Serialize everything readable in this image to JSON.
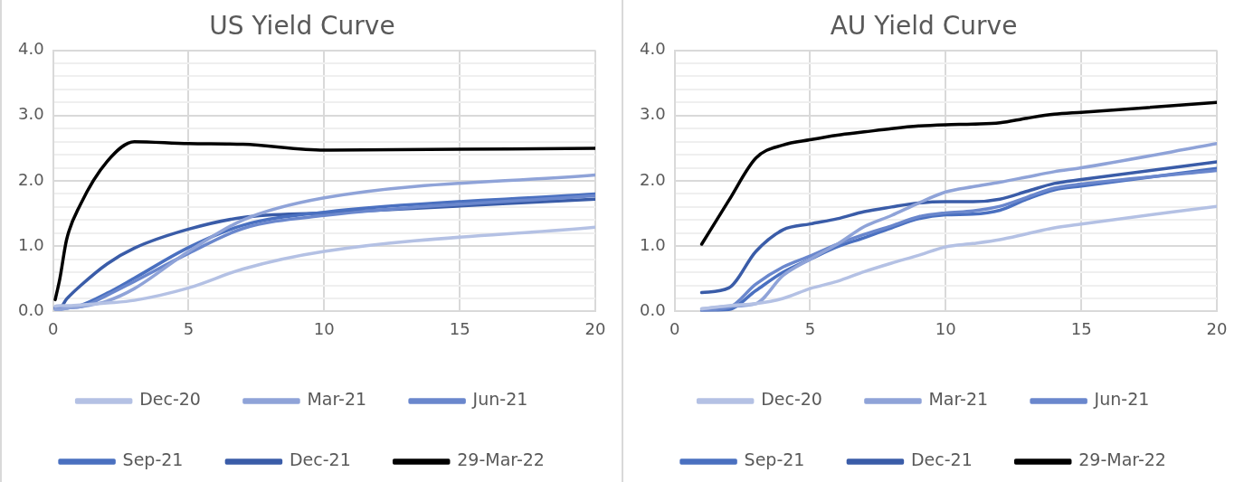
{
  "chart_data": [
    {
      "type": "line",
      "title": "US Yield Curve",
      "x": [
        0.08,
        0.25,
        0.5,
        1,
        2,
        3,
        5,
        7,
        10,
        20
      ],
      "series": [
        {
          "name": "Dec-20",
          "color": "#b4c1e4",
          "values": [
            0.08,
            0.09,
            0.09,
            0.1,
            0.13,
            0.17,
            0.36,
            0.65,
            0.92,
            1.29
          ]
        },
        {
          "name": "Mar-21",
          "color": "#8fa3d8",
          "values": [
            0.03,
            0.03,
            0.05,
            0.07,
            0.16,
            0.35,
            0.92,
            1.4,
            1.74,
            2.09
          ]
        },
        {
          "name": "Jun-21",
          "color": "#6a87cd",
          "values": [
            0.05,
            0.05,
            0.06,
            0.07,
            0.25,
            0.46,
            0.89,
            1.27,
            1.47,
            1.77
          ]
        },
        {
          "name": "Sep-21",
          "color": "#4a70c0",
          "values": [
            0.04,
            0.04,
            0.05,
            0.09,
            0.28,
            0.51,
            0.98,
            1.32,
            1.52,
            1.8
          ]
        },
        {
          "name": "Dec-21",
          "color": "#3a5ca8",
          "values": [
            0.06,
            0.06,
            0.19,
            0.39,
            0.73,
            0.97,
            1.26,
            1.44,
            1.51,
            1.72
          ]
        },
        {
          "name": "29-Mar-22",
          "color": "#000000",
          "values": [
            0.18,
            0.5,
            1.1,
            1.63,
            2.3,
            2.6,
            2.57,
            2.56,
            2.47,
            2.5
          ]
        }
      ],
      "xlim": [
        0,
        20
      ],
      "xticks": [
        0,
        5,
        10,
        15,
        20
      ],
      "ylim": [
        0,
        4
      ],
      "yticks": [
        {
          "value": 0,
          "label": "0.0"
        },
        {
          "value": 0.2,
          "label": null
        },
        {
          "value": 0.4,
          "label": null
        },
        {
          "value": 0.6,
          "label": null
        },
        {
          "value": 0.8,
          "label": null
        },
        {
          "value": 1,
          "label": "1.0"
        },
        {
          "value": 1.2,
          "label": null
        },
        {
          "value": 1.4,
          "label": null
        },
        {
          "value": 1.6,
          "label": null
        },
        {
          "value": 1.8,
          "label": null
        },
        {
          "value": 2,
          "label": "2.0"
        },
        {
          "value": 2.2,
          "label": null
        },
        {
          "value": 2.4,
          "label": null
        },
        {
          "value": 2.6,
          "label": null
        },
        {
          "value": 2.8,
          "label": null
        },
        {
          "value": 3,
          "label": "3.0"
        },
        {
          "value": 3.2,
          "label": null
        },
        {
          "value": 3.4,
          "label": null
        },
        {
          "value": 3.6,
          "label": null
        },
        {
          "value": 3.8,
          "label": null
        },
        {
          "value": 4,
          "label": "4.0"
        }
      ],
      "grid": true,
      "legend": "bottom"
    },
    {
      "type": "line",
      "title": "AU Yield Curve",
      "x": [
        1,
        2,
        3,
        4,
        5,
        6,
        7,
        8,
        9,
        10,
        11,
        12,
        13,
        14,
        15,
        20
      ],
      "series": [
        {
          "name": "Dec-20",
          "color": "#b4c1e4",
          "values": [
            0.04,
            0.09,
            0.12,
            0.2,
            0.35,
            0.46,
            0.61,
            0.74,
            0.86,
            0.99,
            1.04,
            1.1,
            1.19,
            1.28,
            1.34,
            1.61
          ]
        },
        {
          "name": "Mar-21",
          "color": "#8fa3d8",
          "values": [
            0.04,
            0.08,
            0.12,
            0.55,
            0.8,
            1.03,
            1.3,
            1.47,
            1.66,
            1.83,
            1.91,
            1.98,
            2.06,
            2.14,
            2.2,
            2.57
          ]
        },
        {
          "name": "Jun-21",
          "color": "#6a87cd",
          "values": [
            0.02,
            0.06,
            0.42,
            0.68,
            0.85,
            1.03,
            1.18,
            1.31,
            1.45,
            1.51,
            1.54,
            1.61,
            1.75,
            1.89,
            1.95,
            2.16
          ]
        },
        {
          "name": "Sep-21",
          "color": "#4a70c0",
          "values": [
            0.01,
            0.03,
            0.32,
            0.6,
            0.8,
            0.99,
            1.13,
            1.28,
            1.42,
            1.48,
            1.49,
            1.55,
            1.72,
            1.86,
            1.92,
            2.19
          ]
        },
        {
          "name": "Dec-21",
          "color": "#3a5ca8",
          "values": [
            0.29,
            0.36,
            0.92,
            1.25,
            1.34,
            1.42,
            1.53,
            1.6,
            1.66,
            1.68,
            1.68,
            1.72,
            1.84,
            1.96,
            2.02,
            2.29
          ]
        },
        {
          "name": "29-Mar-22",
          "color": "#000000",
          "values": [
            1.03,
            1.7,
            2.35,
            2.55,
            2.63,
            2.7,
            2.75,
            2.8,
            2.84,
            2.86,
            2.87,
            2.89,
            2.96,
            3.02,
            3.05,
            3.2
          ]
        }
      ],
      "xlim": [
        0,
        20
      ],
      "xticks": [
        0,
        5,
        10,
        15,
        20
      ],
      "ylim": [
        0,
        4
      ],
      "yticks": [
        {
          "value": 0,
          "label": "0.0"
        },
        {
          "value": 0.2,
          "label": null
        },
        {
          "value": 0.4,
          "label": null
        },
        {
          "value": 0.6,
          "label": null
        },
        {
          "value": 0.8,
          "label": null
        },
        {
          "value": 1,
          "label": "1.0"
        },
        {
          "value": 1.2,
          "label": null
        },
        {
          "value": 1.4,
          "label": null
        },
        {
          "value": 1.6,
          "label": null
        },
        {
          "value": 1.8,
          "label": null
        },
        {
          "value": 2,
          "label": "2.0"
        },
        {
          "value": 2.2,
          "label": null
        },
        {
          "value": 2.4,
          "label": null
        },
        {
          "value": 2.6,
          "label": null
        },
        {
          "value": 2.8,
          "label": null
        },
        {
          "value": 3,
          "label": "3.0"
        },
        {
          "value": 3.2,
          "label": null
        },
        {
          "value": 3.4,
          "label": null
        },
        {
          "value": 3.6,
          "label": null
        },
        {
          "value": 3.8,
          "label": null
        },
        {
          "value": 4,
          "label": "4.0"
        }
      ],
      "grid": true,
      "legend": "bottom"
    }
  ]
}
